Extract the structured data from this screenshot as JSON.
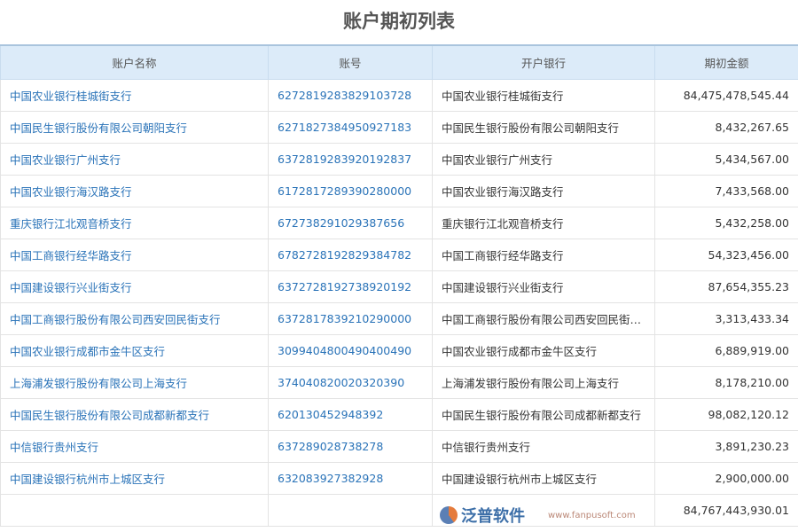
{
  "title": "账户期初列表",
  "columns": [
    "账户名称",
    "账号",
    "开户银行",
    "期初金额"
  ],
  "rows": [
    [
      "中国农业银行桂城街支行",
      "6272819283829103728",
      "中国农业银行桂城街支行",
      "84,475,478,545.44"
    ],
    [
      "中国民生银行股份有限公司朝阳支行",
      "6271827384950927183",
      "中国民生银行股份有限公司朝阳支行",
      "8,432,267.65"
    ],
    [
      "中国农业银行广州支行",
      "6372819283920192837",
      "中国农业银行广州支行",
      "5,434,567.00"
    ],
    [
      "中国农业银行海汉路支行",
      "6172817289390280000",
      "中国农业银行海汉路支行",
      "7,433,568.00"
    ],
    [
      "重庆银行江北观音桥支行",
      "672738291029387656",
      "重庆银行江北观音桥支行",
      "5,432,258.00"
    ],
    [
      "中国工商银行经华路支行",
      "6782728192829384782",
      "中国工商银行经华路支行",
      "54,323,456.00"
    ],
    [
      "中国建设银行兴业街支行",
      "6372728192738920192",
      "中国建设银行兴业街支行",
      "87,654,355.23"
    ],
    [
      "中国工商银行股份有限公司西安回民街支行",
      "6372817839210290000",
      "中国工商银行股份有限公司西安回民街支行",
      "3,313,433.34"
    ],
    [
      "中国农业银行成都市金牛区支行",
      "3099404800490400490",
      "中国农业银行成都市金牛区支行",
      "6,889,919.00"
    ],
    [
      "上海浦发银行股份有限公司上海支行",
      "374040820020320390",
      "上海浦发银行股份有限公司上海支行",
      "8,178,210.00"
    ],
    [
      "中国民生银行股份有限公司成都新都支行",
      "620130452948392",
      "中国民生银行股份有限公司成都新都支行",
      "98,082,120.12"
    ],
    [
      "中信银行贵州支行",
      "637289028738278",
      "中信银行贵州支行",
      "3,891,230.23"
    ],
    [
      "中国建设银行杭州市上城区支行",
      "632083927382928",
      "中国建设银行杭州市上城区支行",
      "2,900,000.00"
    ]
  ],
  "total": "84,767,443,930.01",
  "watermark": {
    "text": "泛普软件",
    "url": "www.fanpusoft.com"
  }
}
